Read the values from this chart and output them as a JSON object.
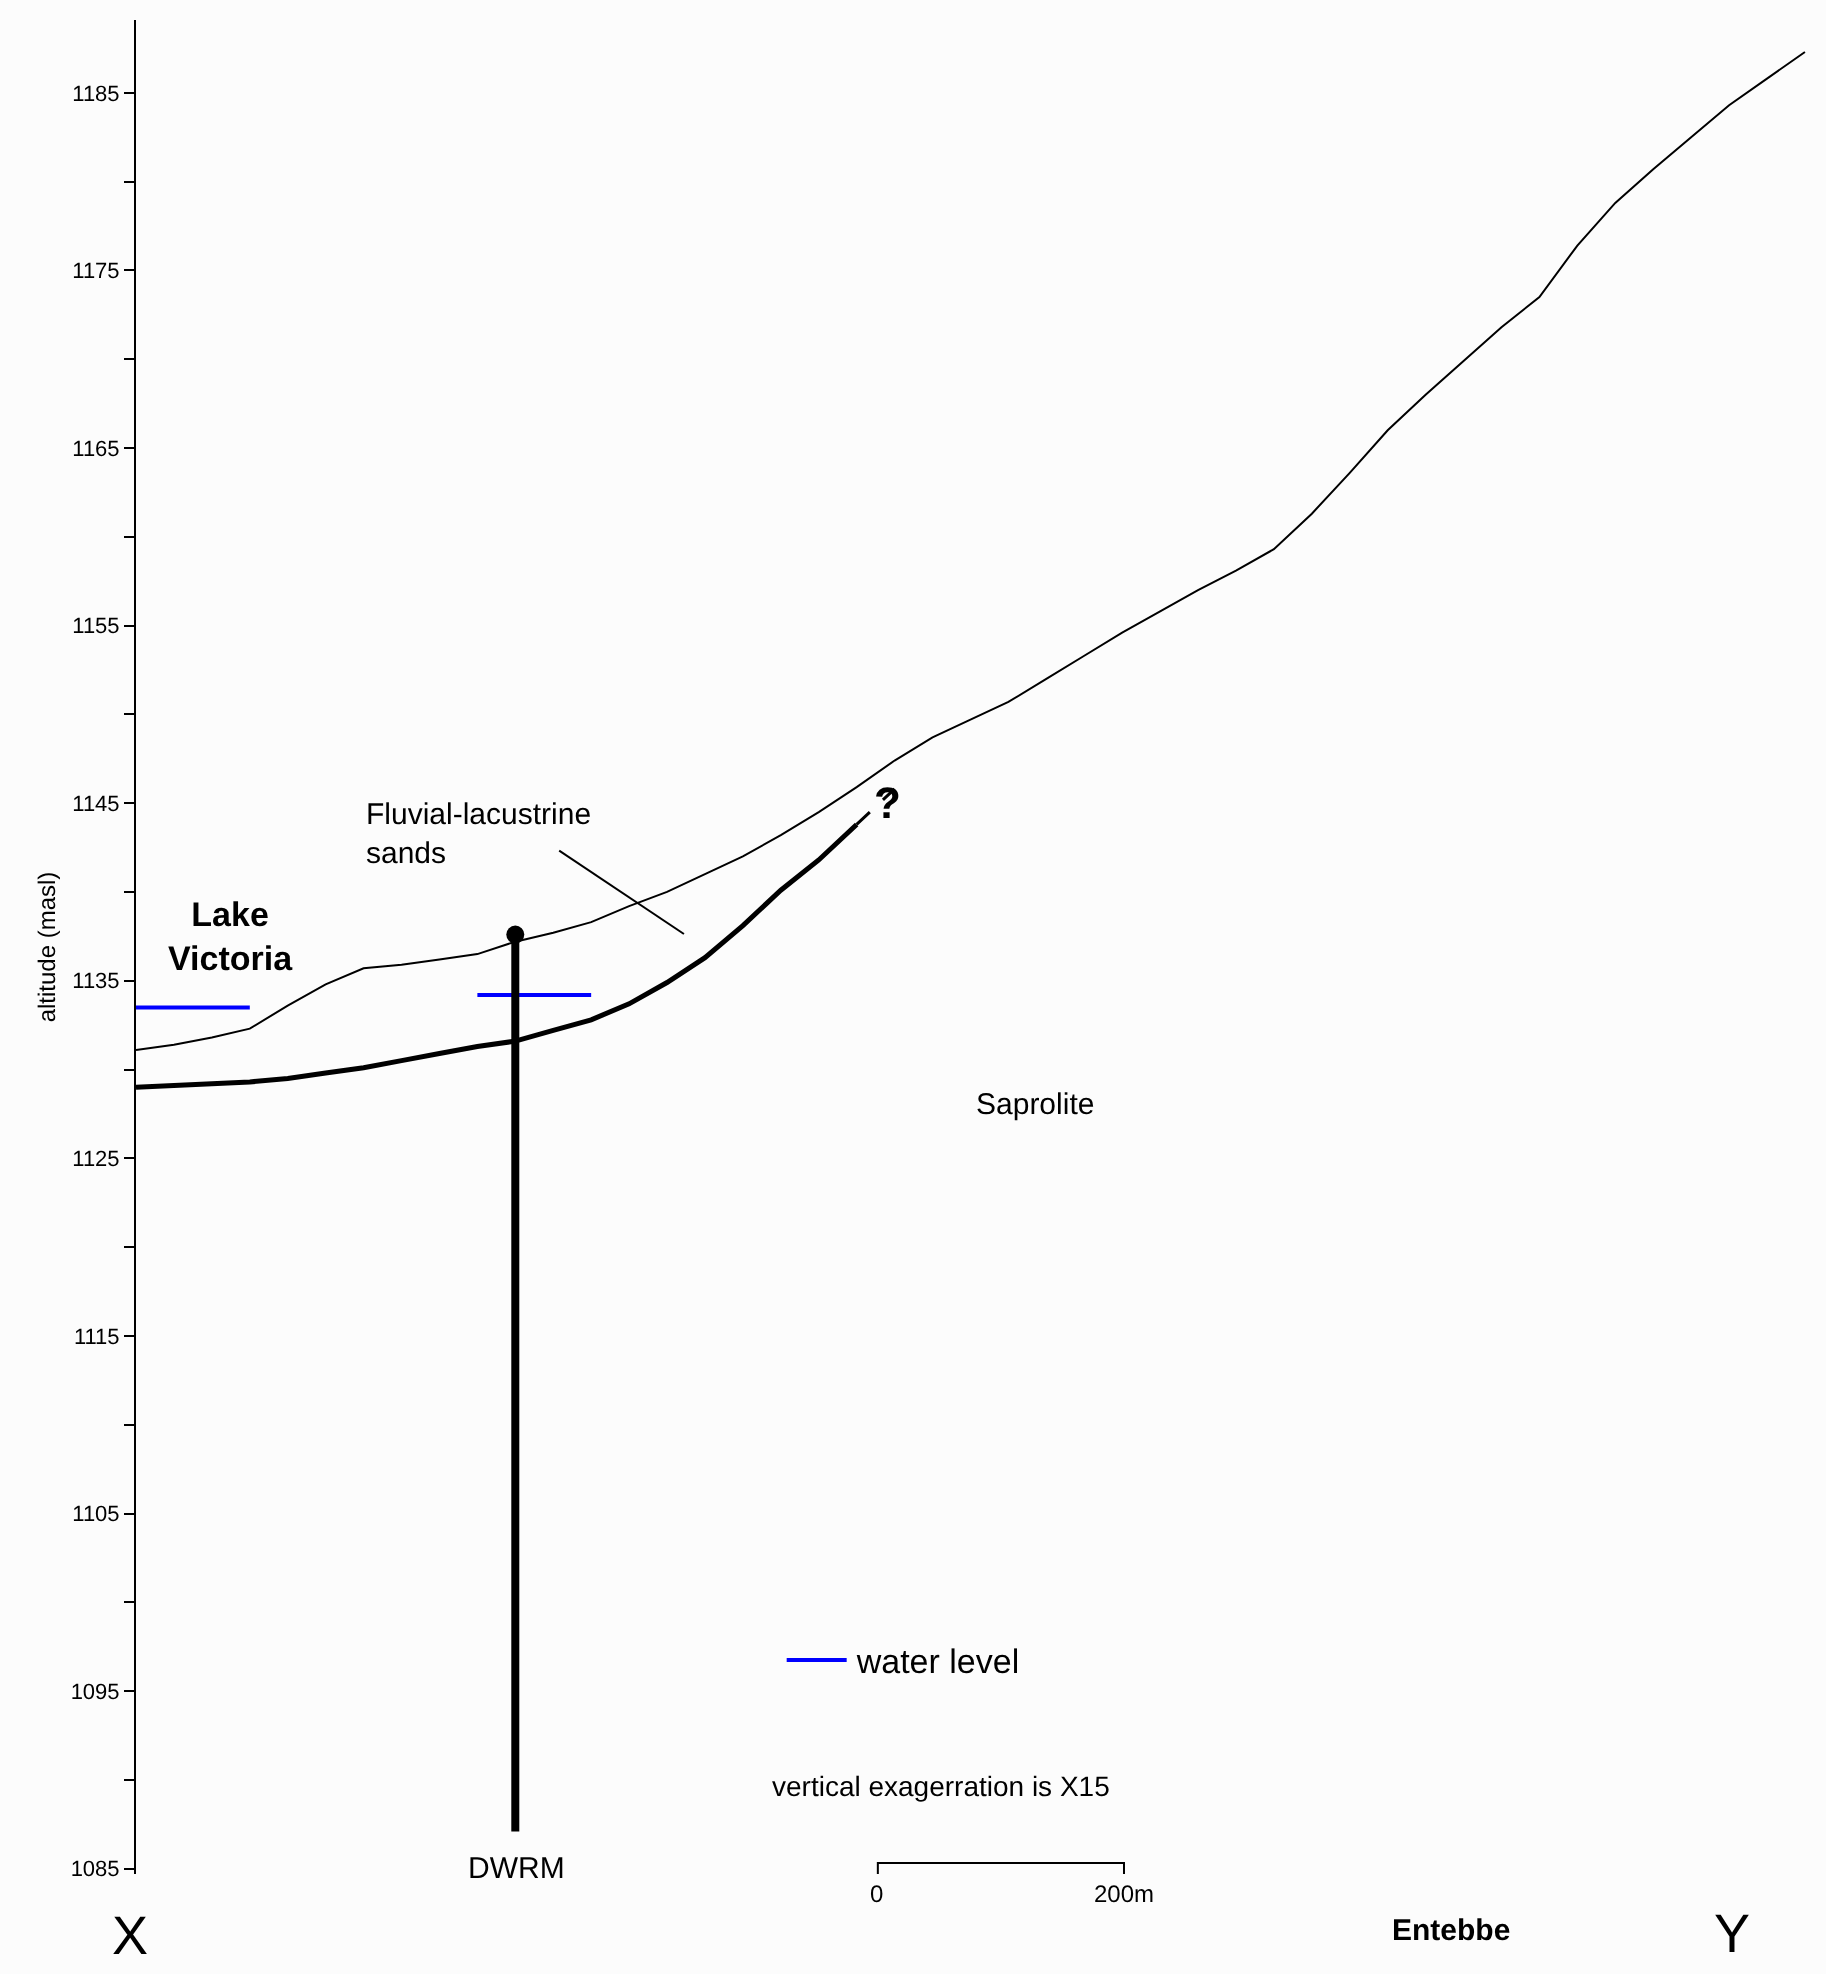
{
  "chart_data": {
    "type": "line",
    "ylabel": "altitude (masl)",
    "categories": [
      null,
      null,
      null,
      null,
      null,
      null,
      null,
      null,
      null,
      null,
      null,
      null,
      null,
      null,
      null,
      null,
      null,
      null,
      null,
      null,
      null,
      null,
      null,
      null,
      null,
      null,
      null,
      null,
      null,
      null,
      null,
      null,
      null,
      null,
      null,
      null,
      null,
      null,
      null,
      null,
      null,
      null,
      null,
      null,
      null
    ],
    "ylim": [
      1084.7,
      1189.1
    ],
    "yticks": [
      1085,
      {
        "value": 1090,
        "label": null
      },
      1095,
      {
        "value": 1100,
        "label": null
      },
      1105,
      {
        "value": 1110,
        "label": null
      },
      1115,
      {
        "value": 1120,
        "label": null
      },
      1125,
      {
        "value": 1130,
        "label": null
      },
      1135,
      {
        "value": 1140,
        "label": null
      },
      1145,
      {
        "value": 1150,
        "label": null
      },
      1155,
      {
        "value": 1160,
        "label": null
      },
      1165,
      {
        "value": 1170,
        "label": null
      },
      1175,
      {
        "value": 1180,
        "label": null
      },
      1185
    ],
    "tick_labels": "y",
    "grid": false,
    "legend": "bottom",
    "marker": "none",
    "line_style": "solid",
    "series": [
      {
        "color": "#000000",
        "values": [
          1131.1,
          1131.4,
          1131.8,
          1132.3,
          1133.6,
          1134.8,
          1135.7,
          1135.9,
          1136.2,
          1136.5,
          1137.2,
          1137.7,
          1138.3,
          1139.2,
          1140.0,
          1141.0,
          1142.0,
          1143.2,
          1144.5,
          1145.9,
          1147.4,
          1148.7,
          1149.7,
          1150.7,
          1152.0,
          1153.3,
          1154.6,
          1155.8,
          1157.0,
          1158.1,
          1159.3,
          1161.3,
          1163.6,
          1166.0,
          1168.0,
          1169.9,
          1171.8,
          1173.5,
          1176.4,
          1178.8,
          1180.7,
          1182.5,
          1184.3,
          1185.8,
          1187.3
        ]
      },
      {
        "color": "#000000",
        "values": [
          1129.0,
          1129.1,
          1129.2,
          1129.3,
          1129.5,
          1129.8,
          1130.1,
          1130.5,
          1130.9,
          1131.3,
          1131.6,
          1132.2,
          1132.8,
          1133.7,
          1134.9,
          1136.3,
          1138.1,
          1140.1,
          1141.8,
          1143.8,
          null,
          null,
          null,
          null,
          null,
          null,
          null,
          null,
          null,
          null,
          null,
          null,
          null,
          null,
          null,
          null,
          null,
          null,
          null,
          null,
          null,
          null,
          null,
          null,
          null
        ]
      },
      {
        "type": "line",
        "line_style": "dashed",
        "color": "#000000",
        "values": [
          null,
          null,
          null,
          null,
          null,
          null,
          null,
          null,
          null,
          null,
          null,
          null,
          null,
          null,
          null,
          null,
          null,
          null,
          null,
          1143.8,
          1145.8,
          null,
          null,
          null,
          null,
          null,
          null,
          null,
          null,
          null,
          null,
          null,
          null,
          null,
          null,
          null,
          null,
          null,
          null,
          null,
          null,
          null,
          null,
          null,
          null
        ]
      },
      {
        "name": "water level",
        "color": "#0000ff",
        "values": [
          1133.5,
          1133.5,
          1133.5,
          1133.5,
          null,
          null,
          null,
          null,
          null,
          1134.2,
          1134.2,
          1134.2,
          1134.2,
          null,
          null,
          null,
          null,
          null,
          null,
          null,
          null,
          null,
          null,
          null,
          null,
          null,
          null,
          null,
          null,
          null,
          null,
          null,
          null,
          null,
          null,
          null,
          null,
          null,
          null,
          null,
          null,
          null,
          null,
          null,
          null
        ]
      },
      {
        "type": "scatter",
        "marker": "circle",
        "color": "#000000",
        "values": [
          null,
          null,
          null,
          null,
          null,
          null,
          null,
          null,
          null,
          null,
          1137.6,
          null,
          null,
          null,
          null,
          null,
          null,
          null,
          null,
          null,
          null,
          null,
          null,
          null,
          null,
          null,
          null,
          null,
          null,
          null,
          null,
          null,
          null,
          null,
          null,
          null,
          null,
          null,
          null,
          null,
          null,
          null,
          null,
          null,
          null
        ],
        "errors": [
          null,
          null,
          null,
          null,
          null,
          null,
          null,
          null,
          null,
          null,
          [
            1087.1,
            1137.6
          ],
          null,
          null,
          null,
          null,
          null,
          null,
          null,
          null,
          null,
          null,
          null,
          null,
          null,
          null,
          null,
          null,
          null,
          null,
          null,
          null,
          null,
          null,
          null,
          null,
          null,
          null,
          null,
          null,
          null,
          null,
          null,
          null,
          null,
          null
        ]
      }
    ],
    "annotations": [
      "Lake\nVictoria",
      "Fluvial-lacustrine\nsands",
      "?",
      "Saprolite",
      "DWRM",
      "vertical exagerration is X15",
      "0",
      "200m",
      "Entebbe",
      "X",
      "Y"
    ]
  }
}
